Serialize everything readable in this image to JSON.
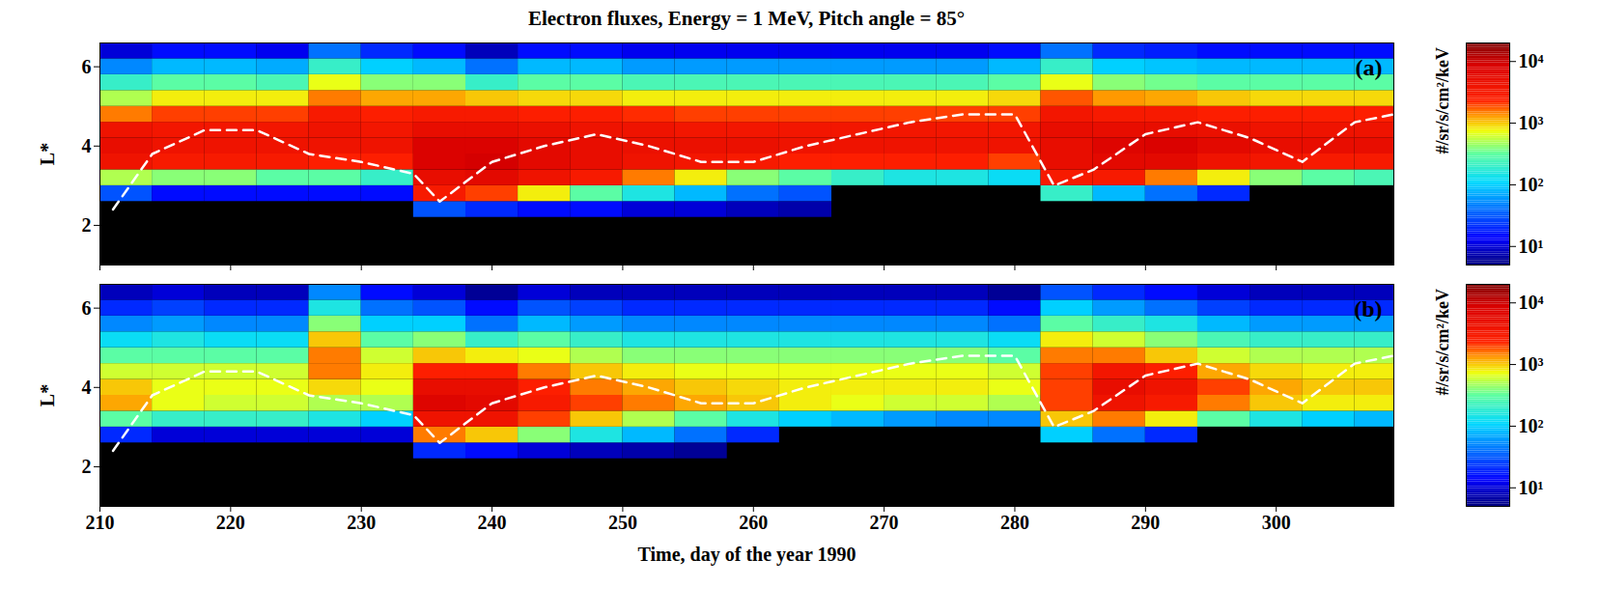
{
  "chart_data": {
    "type": "heatmap",
    "title": "Electron fluxes, Energy = 1 MeV, Pitch angle = 85°",
    "xlabel": "Time, day of the year 1990",
    "ylabel": "L*",
    "xlim": [
      210,
      309
    ],
    "xticks": [
      210,
      220,
      230,
      240,
      250,
      260,
      270,
      280,
      290,
      300
    ],
    "ylim": [
      1,
      6.6
    ],
    "yticks": [
      2,
      4,
      6
    ],
    "log": true,
    "x": [
      212,
      216,
      220,
      224,
      228,
      232,
      236,
      240,
      244,
      248,
      252,
      256,
      260,
      264,
      268,
      272,
      276,
      280,
      284,
      288,
      292,
      296,
      300,
      304,
      308
    ],
    "y": [
      1.2,
      1.6,
      2.0,
      2.4,
      2.8,
      3.2,
      3.6,
      4.0,
      4.4,
      4.8,
      5.2,
      5.6,
      6.0,
      6.4
    ],
    "colorbar": {
      "label": "#/sr/s/cm²/keV",
      "range": [
        5,
        20000
      ],
      "ticks": [
        {
          "value": 10,
          "label": "10¹"
        },
        {
          "value": 100,
          "label": "10²"
        },
        {
          "value": 1000,
          "label": "10³"
        },
        {
          "value": 10000,
          "label": "10⁴"
        }
      ]
    },
    "panels": [
      {
        "label": "(a)",
        "flux": [
          [
            null,
            null,
            null,
            null,
            null,
            null,
            null,
            null,
            null,
            null,
            null,
            null,
            null,
            null,
            null,
            null,
            null,
            null,
            null,
            null,
            null,
            null,
            null,
            null,
            null
          ],
          [
            null,
            null,
            null,
            null,
            null,
            null,
            null,
            null,
            null,
            null,
            null,
            null,
            null,
            null,
            null,
            null,
            null,
            null,
            null,
            null,
            null,
            null,
            null,
            null,
            null
          ],
          [
            null,
            null,
            null,
            null,
            null,
            null,
            null,
            null,
            null,
            null,
            null,
            null,
            null,
            null,
            null,
            null,
            null,
            null,
            null,
            null,
            null,
            null,
            null,
            null,
            null
          ],
          [
            null,
            null,
            null,
            null,
            null,
            null,
            30,
            20,
            15,
            15,
            10,
            10,
            8,
            7,
            null,
            null,
            null,
            null,
            null,
            null,
            null,
            null,
            null,
            null,
            null
          ],
          [
            30,
            15,
            15,
            15,
            15,
            15,
            3000,
            2000,
            800,
            300,
            150,
            80,
            40,
            30,
            null,
            null,
            null,
            null,
            200,
            80,
            40,
            20,
            null,
            null,
            null
          ],
          [
            500,
            400,
            400,
            300,
            300,
            200,
            5000,
            6000,
            4000,
            3000,
            1500,
            800,
            400,
            300,
            200,
            150,
            150,
            120,
            3000,
            3000,
            1500,
            800,
            400,
            300,
            250
          ],
          [
            4000,
            3000,
            3000,
            3000,
            2500,
            2500,
            8000,
            9000,
            6000,
            5000,
            4000,
            3500,
            3000,
            2500,
            2500,
            2500,
            2500,
            2000,
            5000,
            6000,
            6000,
            4000,
            3500,
            3000,
            3000
          ],
          [
            5000,
            4000,
            4000,
            4000,
            4000,
            4000,
            8000,
            8000,
            6000,
            5000,
            4500,
            4500,
            4500,
            4000,
            4000,
            4000,
            4000,
            4000,
            5000,
            7000,
            8000,
            6000,
            5000,
            5000,
            5000
          ],
          [
            4000,
            3500,
            3500,
            3500,
            4000,
            3500,
            5000,
            5000,
            4500,
            4000,
            4000,
            3500,
            3500,
            3500,
            3500,
            3500,
            3500,
            3500,
            5000,
            5000,
            5000,
            4500,
            4000,
            4000,
            4000
          ],
          [
            1500,
            2000,
            2000,
            2000,
            3000,
            2500,
            3000,
            3000,
            2500,
            2500,
            2200,
            2000,
            2000,
            2000,
            2000,
            2000,
            2000,
            2000,
            3500,
            3000,
            3000,
            2500,
            2500,
            2500,
            2500
          ],
          [
            500,
            800,
            800,
            800,
            1500,
            1200,
            1200,
            1000,
            900,
            900,
            800,
            800,
            800,
            800,
            800,
            800,
            800,
            900,
            1800,
            1300,
            1200,
            1000,
            900,
            900,
            900
          ],
          [
            200,
            300,
            300,
            250,
            700,
            400,
            400,
            200,
            300,
            300,
            250,
            250,
            250,
            250,
            250,
            250,
            250,
            300,
            700,
            400,
            350,
            300,
            300,
            300,
            300
          ],
          [
            50,
            80,
            80,
            70,
            200,
            100,
            80,
            40,
            80,
            80,
            60,
            60,
            60,
            60,
            60,
            60,
            60,
            80,
            200,
            100,
            90,
            80,
            80,
            80,
            80
          ],
          [
            10,
            15,
            15,
            12,
            40,
            20,
            15,
            8,
            15,
            15,
            12,
            12,
            12,
            12,
            12,
            12,
            12,
            15,
            40,
            20,
            18,
            15,
            15,
            15,
            15
          ]
        ]
      },
      {
        "label": "(b)",
        "flux": [
          [
            null,
            null,
            null,
            null,
            null,
            null,
            null,
            null,
            null,
            null,
            null,
            null,
            null,
            null,
            null,
            null,
            null,
            null,
            null,
            null,
            null,
            null,
            null,
            null,
            null
          ],
          [
            null,
            null,
            null,
            null,
            null,
            null,
            null,
            null,
            null,
            null,
            null,
            null,
            null,
            null,
            null,
            null,
            null,
            null,
            null,
            null,
            null,
            null,
            null,
            null,
            null
          ],
          [
            null,
            null,
            null,
            null,
            null,
            null,
            null,
            null,
            null,
            null,
            null,
            null,
            null,
            null,
            null,
            null,
            null,
            null,
            null,
            null,
            null,
            null,
            null,
            null,
            null
          ],
          [
            null,
            null,
            null,
            null,
            null,
            null,
            20,
            15,
            10,
            8,
            7,
            6,
            null,
            null,
            null,
            null,
            null,
            null,
            null,
            null,
            null,
            null,
            null,
            null,
            null
          ],
          [
            20,
            10,
            10,
            10,
            10,
            10,
            1500,
            1000,
            400,
            150,
            80,
            40,
            20,
            null,
            null,
            null,
            null,
            null,
            100,
            40,
            20,
            null,
            null,
            null,
            null
          ],
          [
            300,
            200,
            200,
            200,
            150,
            100,
            4000,
            4000,
            2000,
            1000,
            500,
            300,
            150,
            100,
            80,
            60,
            50,
            50,
            1000,
            1500,
            800,
            300,
            150,
            100,
            80
          ],
          [
            1200,
            700,
            600,
            600,
            500,
            500,
            7000,
            6000,
            3000,
            2000,
            1500,
            1200,
            1000,
            800,
            700,
            600,
            600,
            500,
            2000,
            4000,
            3000,
            1500,
            1000,
            800,
            800
          ],
          [
            1000,
            700,
            700,
            700,
            900,
            700,
            5000,
            5000,
            2500,
            1500,
            1200,
            1000,
            900,
            800,
            800,
            800,
            800,
            700,
            2000,
            5000,
            4000,
            2000,
            1200,
            1000,
            1000
          ],
          [
            600,
            600,
            600,
            600,
            1500,
            800,
            2500,
            2500,
            1500,
            1000,
            800,
            700,
            700,
            700,
            700,
            700,
            700,
            600,
            2000,
            3500,
            2500,
            1200,
            900,
            800,
            800
          ],
          [
            300,
            300,
            300,
            300,
            1500,
            600,
            1000,
            800,
            700,
            500,
            400,
            400,
            400,
            400,
            400,
            400,
            400,
            300,
            1500,
            1500,
            1000,
            600,
            500,
            500,
            500
          ],
          [
            120,
            150,
            120,
            120,
            1000,
            300,
            400,
            200,
            300,
            200,
            150,
            150,
            150,
            150,
            150,
            150,
            150,
            120,
            800,
            600,
            400,
            250,
            200,
            200,
            200
          ],
          [
            50,
            60,
            50,
            50,
            400,
            100,
            100,
            40,
            80,
            60,
            50,
            50,
            50,
            50,
            50,
            50,
            50,
            40,
            300,
            200,
            150,
            80,
            60,
            60,
            60
          ],
          [
            20,
            25,
            20,
            20,
            150,
            40,
            30,
            15,
            30,
            25,
            20,
            20,
            20,
            20,
            20,
            20,
            20,
            15,
            100,
            60,
            40,
            25,
            20,
            20,
            20
          ],
          [
            8,
            10,
            8,
            8,
            50,
            15,
            10,
            6,
            10,
            8,
            8,
            8,
            8,
            8,
            8,
            8,
            8,
            6,
            30,
            20,
            15,
            10,
            8,
            8,
            8
          ]
        ]
      }
    ],
    "lines": [
      {
        "x": [
          211,
          214,
          218,
          222,
          226,
          230,
          234,
          236,
          240,
          244,
          248,
          252,
          256,
          260,
          264,
          268,
          272,
          276,
          280,
          283,
          286,
          290,
          294,
          298,
          302,
          306,
          309
        ],
        "values": [
          2.4,
          3.8,
          4.4,
          4.4,
          3.8,
          3.6,
          3.3,
          2.6,
          3.6,
          4.0,
          4.3,
          4.0,
          3.6,
          3.6,
          4.0,
          4.3,
          4.6,
          4.8,
          4.8,
          3.0,
          3.4,
          4.3,
          4.6,
          4.2,
          3.6,
          4.6,
          4.8
        ],
        "color": "#ffffff",
        "line_style": "dashed"
      }
    ]
  }
}
